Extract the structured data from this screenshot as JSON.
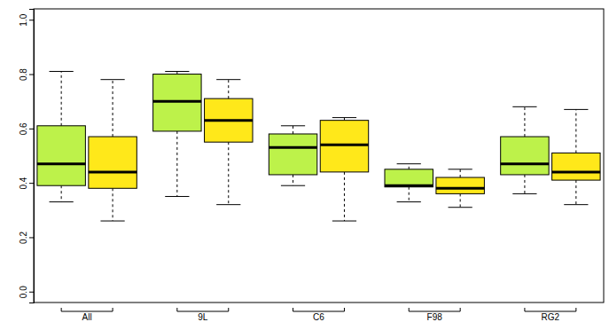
{
  "chart_data": {
    "type": "box",
    "categories": [
      "All",
      "9L",
      "C6",
      "F98",
      "RG2"
    ],
    "series": [
      {
        "color": "#bdf24a",
        "values": [
          {
            "min": 0.33,
            "q1": 0.39,
            "median": 0.47,
            "q3": 0.61,
            "max": 0.81
          },
          {
            "min": 0.35,
            "q1": 0.59,
            "median": 0.7,
            "q3": 0.8,
            "max": 0.81
          },
          {
            "min": 0.39,
            "q1": 0.43,
            "median": 0.53,
            "q3": 0.58,
            "max": 0.61
          },
          {
            "min": 0.33,
            "q1": 0.385,
            "median": 0.39,
            "q3": 0.45,
            "max": 0.47
          },
          {
            "min": 0.36,
            "q1": 0.43,
            "median": 0.47,
            "q3": 0.57,
            "max": 0.68
          }
        ]
      },
      {
        "color": "#ffe81a",
        "values": [
          {
            "min": 0.26,
            "q1": 0.38,
            "median": 0.44,
            "q3": 0.57,
            "max": 0.78
          },
          {
            "min": 0.32,
            "q1": 0.55,
            "median": 0.63,
            "q3": 0.71,
            "max": 0.78
          },
          {
            "min": 0.26,
            "q1": 0.44,
            "median": 0.54,
            "q3": 0.63,
            "max": 0.64
          },
          {
            "min": 0.31,
            "q1": 0.36,
            "median": 0.38,
            "q3": 0.42,
            "max": 0.45
          },
          {
            "min": 0.32,
            "q1": 0.41,
            "median": 0.44,
            "q3": 0.51,
            "max": 0.67
          }
        ]
      }
    ],
    "ylim": [
      -0.04,
      1.04
    ],
    "yticks": [
      {
        "value": 0,
        "label": "0.0"
      },
      0.2,
      0.4,
      0.6,
      0.8,
      {
        "value": 1,
        "label": "1.0"
      }
    ]
  }
}
